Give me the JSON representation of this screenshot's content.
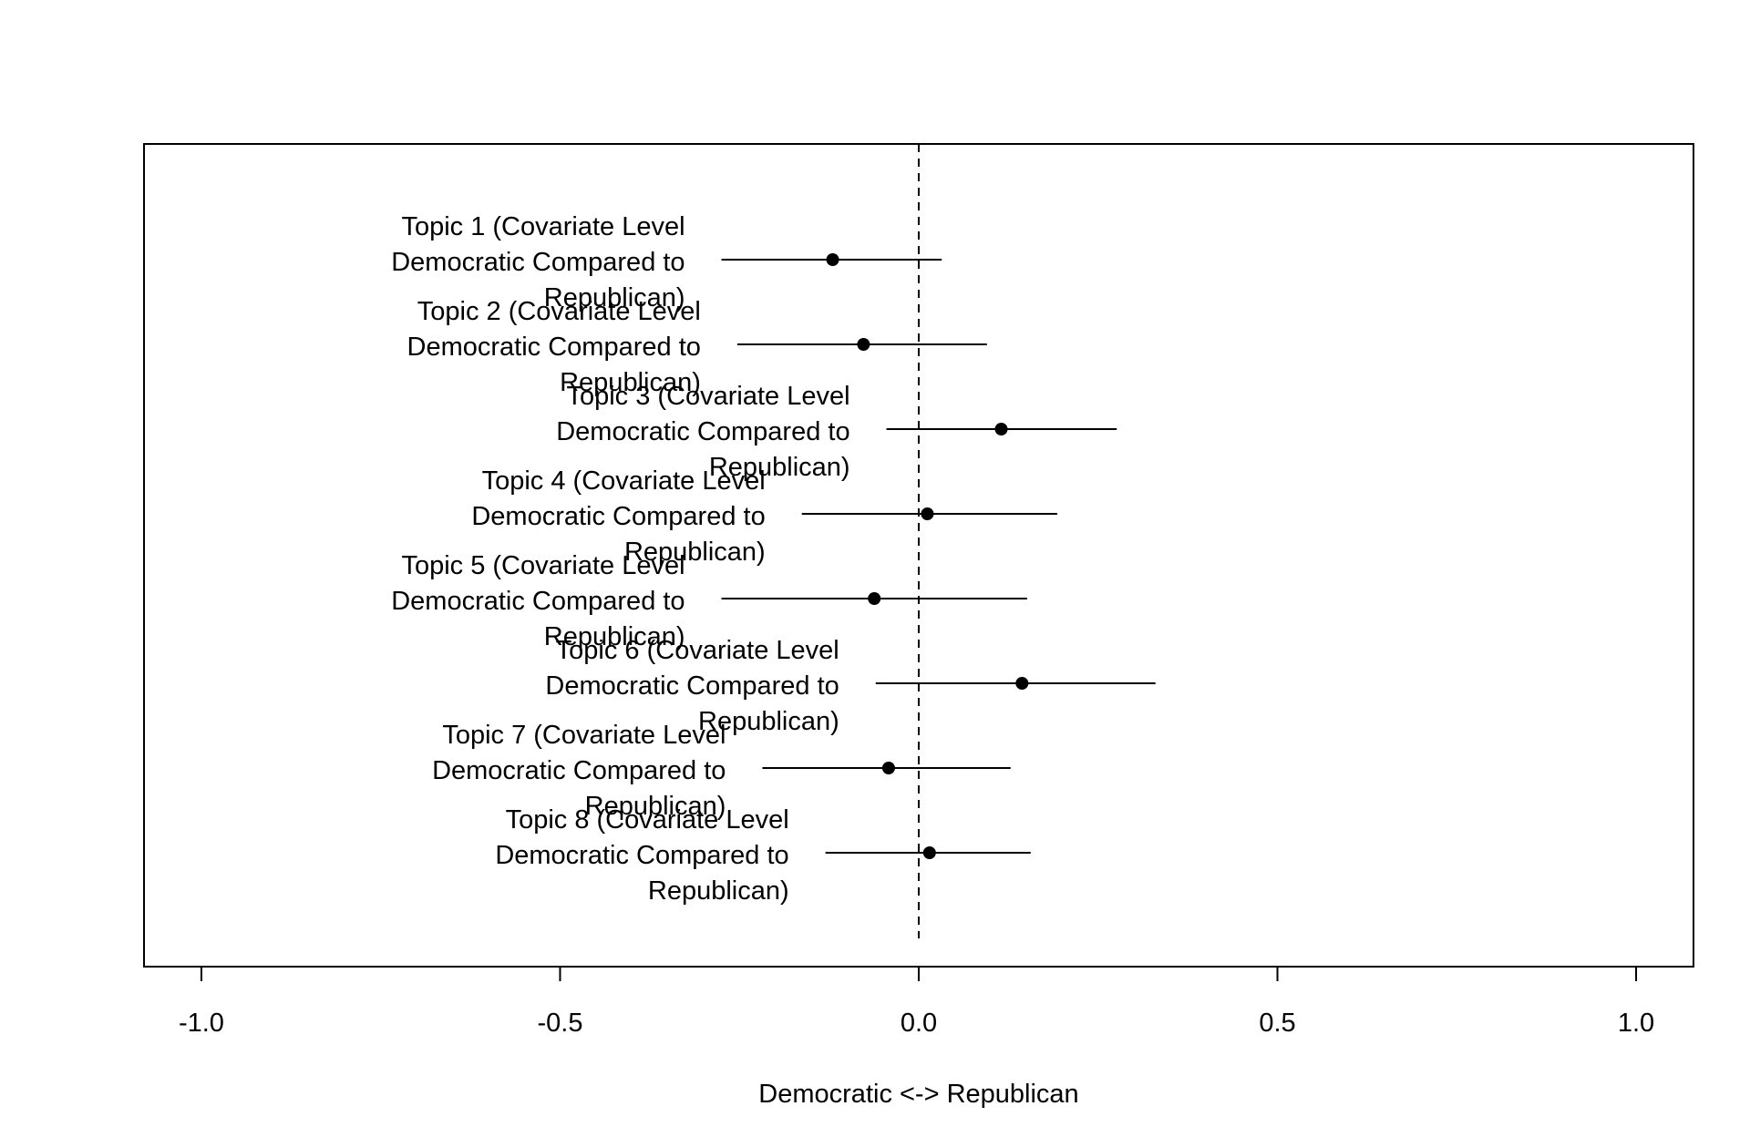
{
  "chart_data": {
    "type": "scatter",
    "title": "",
    "xlabel": "Democratic <-> Republican",
    "ylabel": "",
    "xlim": [
      -1.08,
      1.08
    ],
    "xticks": [
      -1.0,
      -0.5,
      0.0,
      0.5,
      1.0
    ],
    "xtick_labels": [
      "-1.0",
      "-0.5",
      "0.0",
      "0.5",
      "1.0"
    ],
    "reference_line": {
      "x": 0.0,
      "style": "dashed"
    },
    "grid": false,
    "legend": "none",
    "point_color": "#000000",
    "points": [
      {
        "label_lines": [
          "Topic 1 (Covariate Level",
          "Democratic Compared to",
          "Republican)"
        ],
        "estimate": -0.12,
        "lower": -0.275,
        "upper": 0.032
      },
      {
        "label_lines": [
          "Topic 2 (Covariate Level",
          "Democratic Compared to",
          "Republican)"
        ],
        "estimate": -0.077,
        "lower": -0.253,
        "upper": 0.095
      },
      {
        "label_lines": [
          "Topic 3 (Covariate Level",
          "Democratic Compared to",
          "Republican)"
        ],
        "estimate": 0.115,
        "lower": -0.045,
        "upper": 0.276
      },
      {
        "label_lines": [
          "Topic 4 (Covariate Level",
          "Democratic Compared to",
          "Republican)"
        ],
        "estimate": 0.012,
        "lower": -0.163,
        "upper": 0.193
      },
      {
        "label_lines": [
          "Topic 5 (Covariate Level",
          "Democratic Compared to",
          "Republican)"
        ],
        "estimate": -0.062,
        "lower": -0.275,
        "upper": 0.151
      },
      {
        "label_lines": [
          "Topic 6 (Covariate Level",
          "Democratic Compared to",
          "Republican)"
        ],
        "estimate": 0.144,
        "lower": -0.06,
        "upper": 0.33
      },
      {
        "label_lines": [
          "Topic 7 (Covariate Level",
          "Democratic Compared to",
          "Republican)"
        ],
        "estimate": -0.042,
        "lower": -0.218,
        "upper": 0.128
      },
      {
        "label_lines": [
          "Topic 8 (Covariate Level",
          "Democratic Compared to",
          "Republican)"
        ],
        "estimate": 0.015,
        "lower": -0.13,
        "upper": 0.156
      }
    ]
  }
}
